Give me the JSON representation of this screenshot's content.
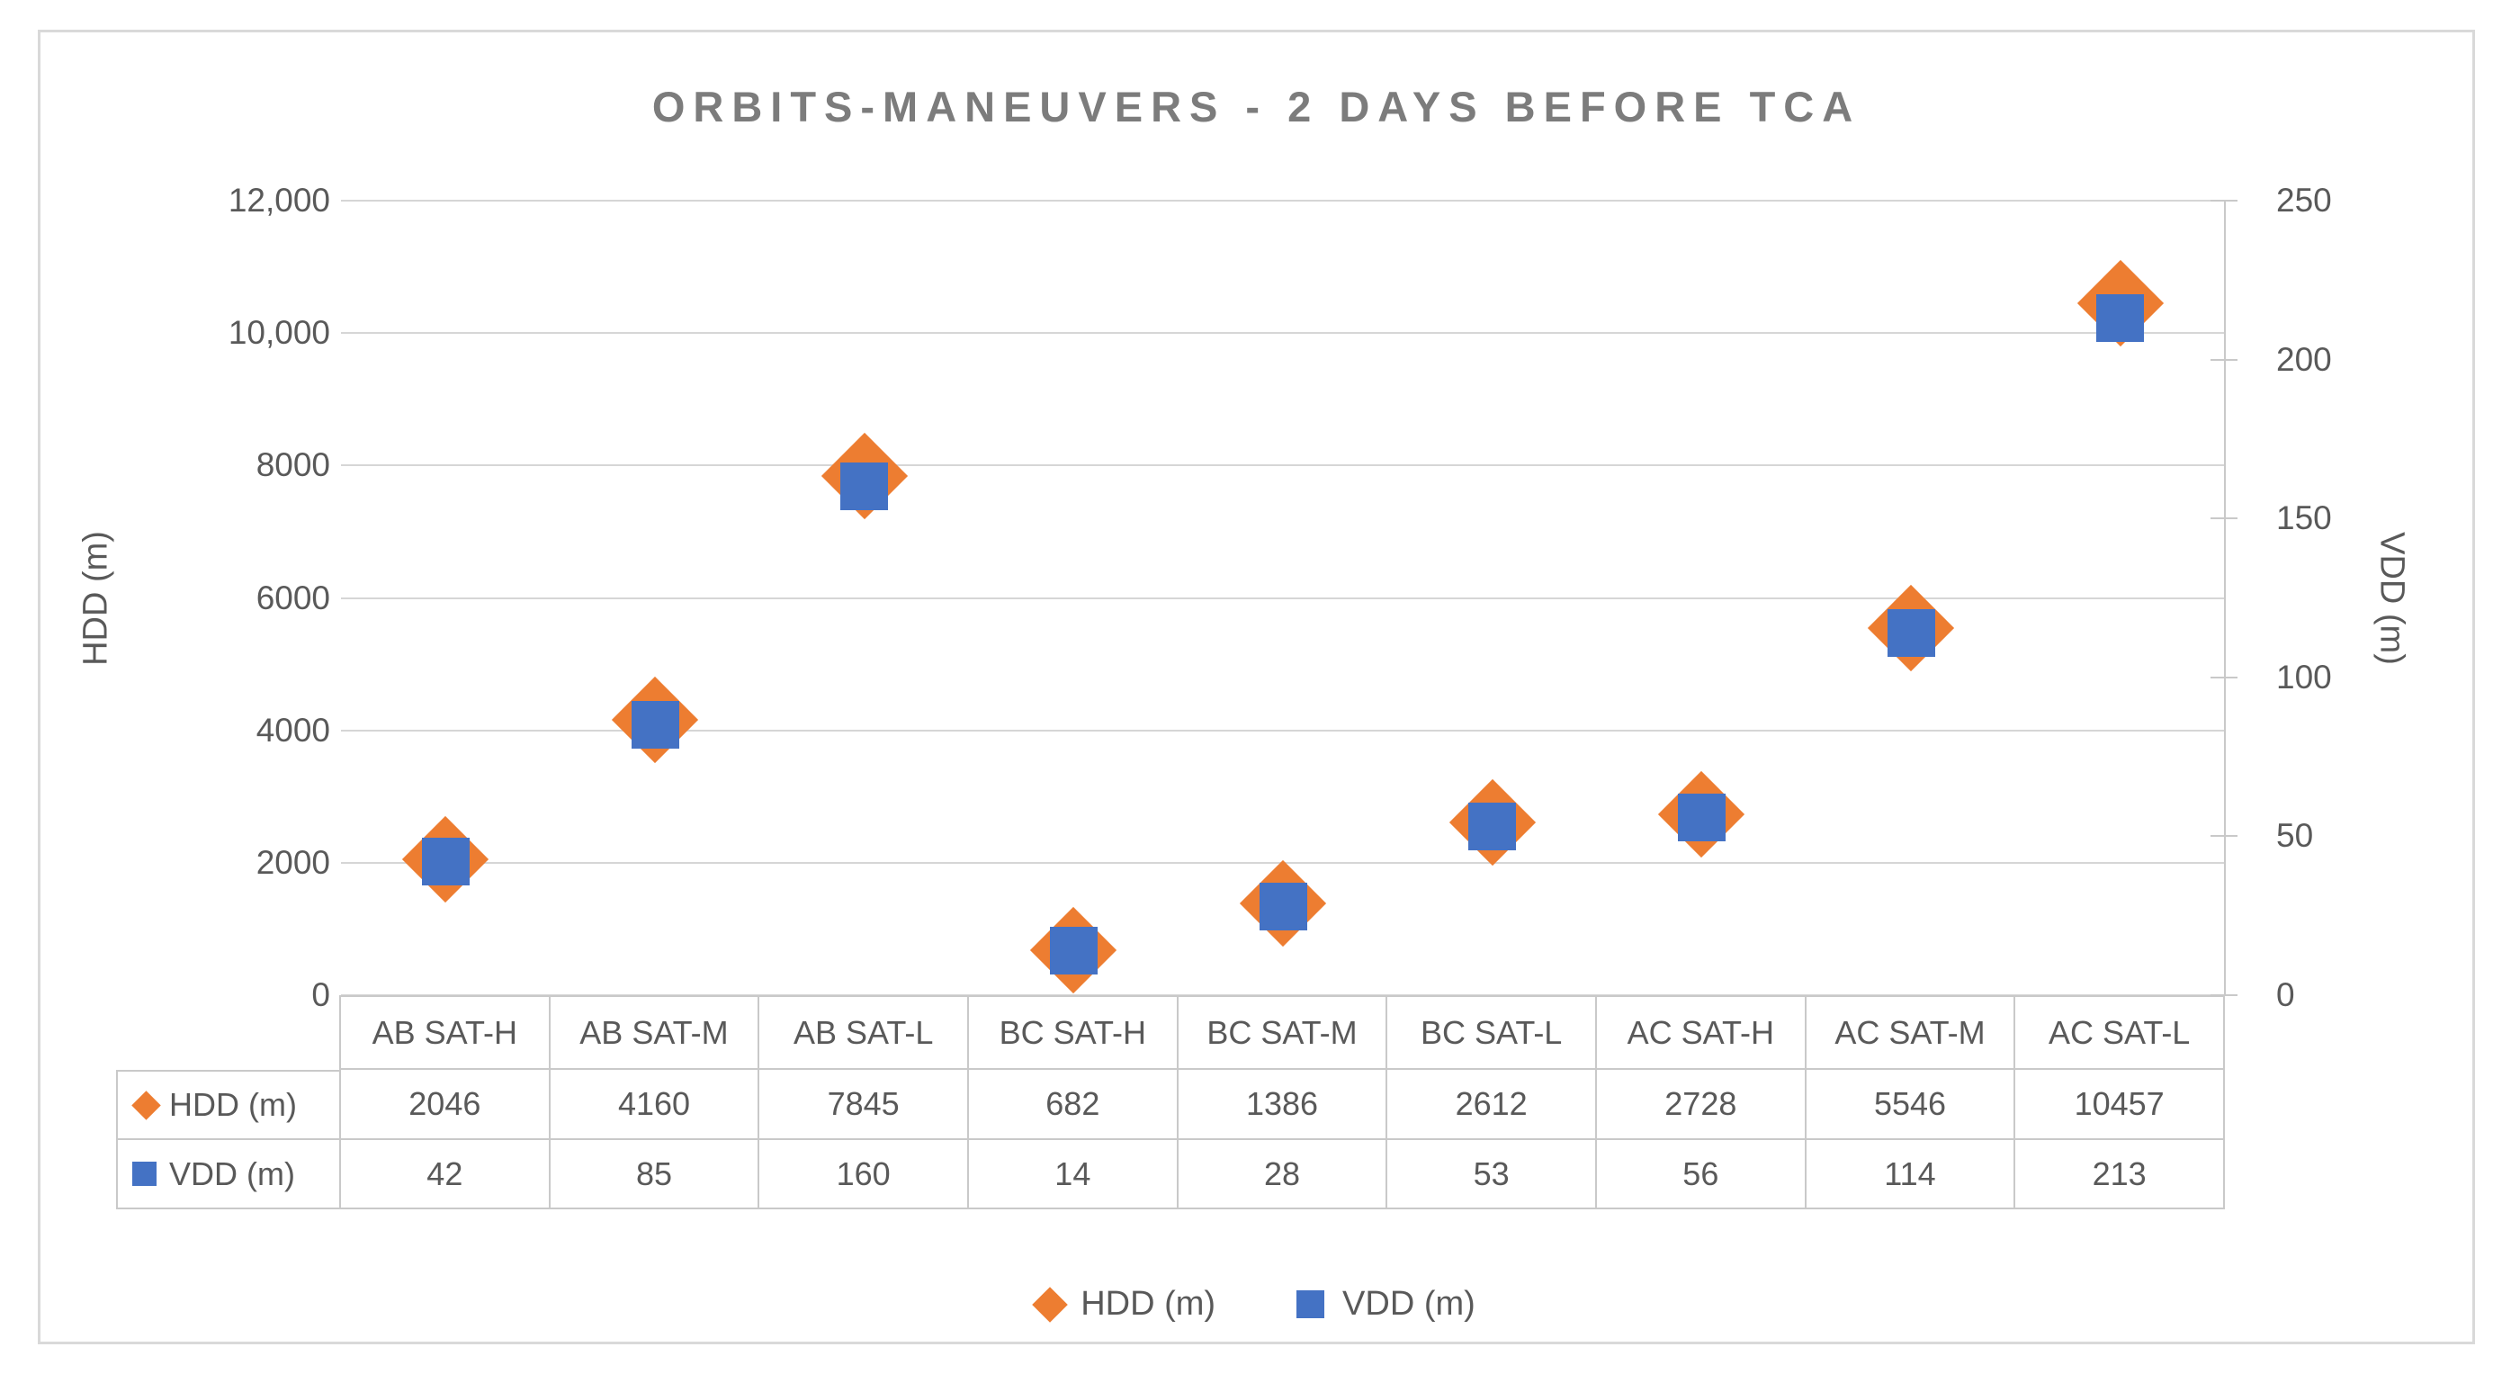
{
  "chart": {
    "title": "ORBITS-MANEUVERS - 2 DAYS BEFORE TCA",
    "left_axis": {
      "title": "HDD (m)",
      "ticks": [
        "12,000",
        "10,000",
        "8000",
        "6000",
        "4000",
        "2000",
        "0"
      ],
      "min": 0,
      "max": 12000,
      "step": 2000
    },
    "right_axis": {
      "title": "VDD (m)",
      "ticks": [
        "250",
        "200",
        "150",
        "100",
        "50",
        "0"
      ],
      "min": 0,
      "max": 250,
      "step": 50
    }
  },
  "chart_data": {
    "type": "scatter",
    "title": "ORBITS-MANEUVERS - 2 DAYS BEFORE TCA",
    "categories": [
      "AB SAT-H",
      "AB SAT-M",
      "AB SAT-L",
      "BC SAT-H",
      "BC SAT-M",
      "BC SAT-L",
      "AC SAT-H",
      "AC SAT-M",
      "AC SAT-L"
    ],
    "series": [
      {
        "name": "HDD (m)",
        "axis": "left",
        "marker": "diamond",
        "color": "#ED7D31",
        "values": [
          2046,
          4160,
          7845,
          682,
          1386,
          2612,
          2728,
          5546,
          10457
        ]
      },
      {
        "name": "VDD (m)",
        "axis": "right",
        "marker": "square",
        "color": "#4472C4",
        "values": [
          42,
          85,
          160,
          14,
          28,
          53,
          56,
          114,
          213
        ]
      }
    ],
    "xlabel": "",
    "ylabel_left": "HDD (m)",
    "ylabel_right": "VDD (m)",
    "left_ylim": [
      0,
      12000
    ],
    "right_ylim": [
      0,
      250
    ],
    "grid": true,
    "data_table_shown": true,
    "legend_position": "bottom"
  },
  "table": {
    "row_labels": [
      "HDD (m)",
      "VDD (m)"
    ]
  },
  "legend": {
    "items": [
      {
        "label": "HDD (m)",
        "marker": "diamond",
        "color": "#ED7D31"
      },
      {
        "label": "VDD (m)",
        "marker": "square",
        "color": "#4472C4"
      }
    ]
  },
  "colors": {
    "hdd_orange": "#ED7D31",
    "vdd_blue": "#4472C4",
    "title_gray": "#7C7C7C",
    "axis_text": "#595959",
    "gridline": "#D6D6D6",
    "table_border": "#C9C9C9"
  }
}
